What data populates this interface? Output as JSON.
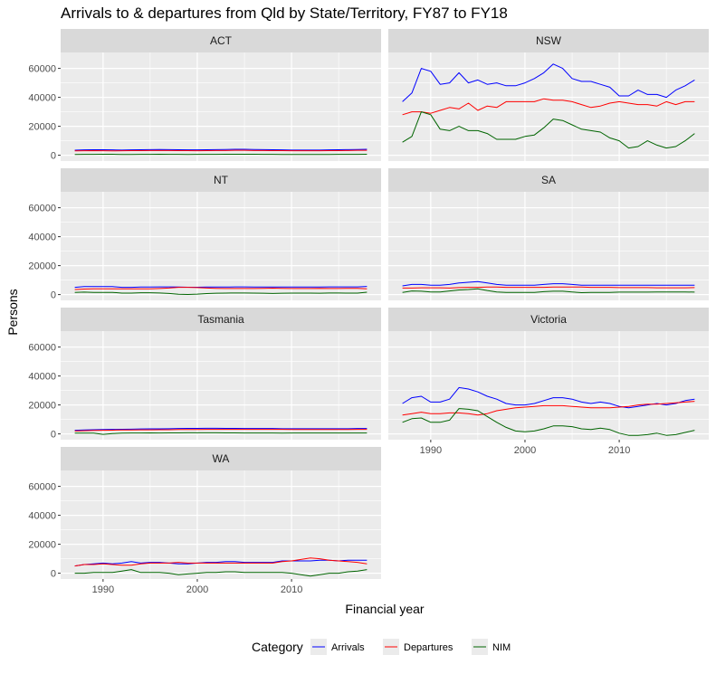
{
  "chart_data": {
    "type": "line",
    "title": "Arrivals to & departures from Qld by State/Territory, FY87 to FY18",
    "xlabel": "Financial year",
    "ylabel": "Persons",
    "xlim": [
      1985.5,
      2019.5
    ],
    "ylim": [
      -4000,
      71000
    ],
    "x_ticks": [
      1990,
      2000,
      2010
    ],
    "x_tick_labels": [
      "1990",
      "2000",
      "2010"
    ],
    "y_ticks": [
      0,
      20000,
      40000,
      60000
    ],
    "y_tick_labels": [
      "0",
      "20000",
      "40000",
      "60000"
    ],
    "legend": {
      "title": "Category",
      "position": "bottom",
      "entries": [
        {
          "label": "Arrivals",
          "color": "#0000ff"
        },
        {
          "label": "Departures",
          "color": "#ff0000"
        },
        {
          "label": "NIM",
          "color": "#006400"
        }
      ]
    },
    "x": [
      1987,
      1988,
      1989,
      1990,
      1991,
      1992,
      1993,
      1994,
      1995,
      1996,
      1997,
      1998,
      1999,
      2000,
      2001,
      2002,
      2003,
      2004,
      2005,
      2006,
      2007,
      2008,
      2009,
      2010,
      2011,
      2012,
      2013,
      2014,
      2015,
      2016,
      2017,
      2018
    ],
    "panels": [
      {
        "label": "ACT",
        "series": [
          {
            "name": "Arrivals",
            "values": [
              3500,
              3700,
              3800,
              3800,
              3700,
              3600,
              3700,
              3800,
              3900,
              4000,
              3900,
              3800,
              3700,
              3700,
              3800,
              3900,
              4000,
              4100,
              4100,
              4000,
              3900,
              3800,
              3700,
              3600,
              3600,
              3600,
              3600,
              3700,
              3800,
              3900,
              4000,
              4100
            ]
          },
          {
            "name": "Departures",
            "values": [
              3000,
              3100,
              3200,
              3100,
              3000,
              3100,
              3200,
              3200,
              3300,
              3300,
              3300,
              3200,
              3200,
              3100,
              3200,
              3300,
              3300,
              3400,
              3400,
              3300,
              3300,
              3200,
              3200,
              3100,
              3100,
              3100,
              3100,
              3200,
              3200,
              3300,
              3400,
              3400
            ]
          },
          {
            "name": "NIM",
            "values": [
              500,
              600,
              600,
              700,
              700,
              500,
              500,
              600,
              600,
              700,
              600,
              600,
              500,
              600,
              600,
              600,
              700,
              700,
              700,
              700,
              600,
              600,
              500,
              500,
              500,
              500,
              500,
              500,
              600,
              600,
              600,
              700
            ]
          }
        ]
      },
      {
        "label": "NSW",
        "series": [
          {
            "name": "Arrivals",
            "values": [
              37000,
              43000,
              60000,
              58000,
              49000,
              50000,
              57000,
              50000,
              52000,
              49000,
              50000,
              48000,
              48000,
              50000,
              53000,
              57000,
              63000,
              60000,
              53000,
              51000,
              51000,
              49000,
              47000,
              41000,
              41000,
              45000,
              42000,
              42000,
              40000,
              45000,
              48000,
              52000
            ]
          },
          {
            "name": "Departures",
            "values": [
              28000,
              30000,
              30000,
              29000,
              31000,
              33000,
              32000,
              36000,
              31000,
              34000,
              33000,
              37000,
              37000,
              37000,
              37000,
              39000,
              38000,
              38000,
              37000,
              35000,
              33000,
              34000,
              36000,
              37000,
              36000,
              35000,
              35000,
              34000,
              37000,
              35000,
              37000,
              37000
            ]
          },
          {
            "name": "NIM",
            "values": [
              9000,
              13000,
              30000,
              28000,
              18000,
              17000,
              20000,
              17000,
              17000,
              15000,
              11000,
              11000,
              11000,
              13000,
              14000,
              19000,
              25000,
              24000,
              21000,
              18000,
              17000,
              16000,
              12000,
              10000,
              5000,
              6000,
              10000,
              7000,
              5000,
              6000,
              10000,
              15000
            ]
          }
        ]
      },
      {
        "label": "NT",
        "series": [
          {
            "name": "Arrivals",
            "values": [
              5000,
              5500,
              5500,
              5500,
              5500,
              5000,
              5000,
              5200,
              5200,
              5300,
              5300,
              5200,
              5100,
              5100,
              5200,
              5200,
              5200,
              5300,
              5300,
              5200,
              5200,
              5200,
              5200,
              5200,
              5200,
              5200,
              5200,
              5300,
              5300,
              5300,
              5300,
              5600
            ]
          },
          {
            "name": "Departures",
            "values": [
              3500,
              3800,
              4000,
              4000,
              4000,
              4000,
              4000,
              4000,
              4000,
              4200,
              4500,
              5000,
              5000,
              4800,
              4500,
              4300,
              4200,
              4200,
              4200,
              4200,
              4300,
              4400,
              4300,
              4200,
              4200,
              4200,
              4300,
              4200,
              4200,
              4300,
              4300,
              4000
            ]
          },
          {
            "name": "NIM",
            "values": [
              1500,
              1700,
              1500,
              1500,
              1500,
              1000,
              1000,
              1200,
              1200,
              1100,
              800,
              200,
              100,
              300,
              700,
              900,
              1000,
              1100,
              1100,
              1000,
              900,
              800,
              900,
              1000,
              1000,
              1000,
              900,
              1100,
              1100,
              1000,
              1000,
              1600
            ]
          }
        ]
      },
      {
        "label": "SA",
        "series": [
          {
            "name": "Arrivals",
            "values": [
              6000,
              7000,
              7000,
              6500,
              6500,
              7000,
              8000,
              8500,
              9000,
              8000,
              7000,
              6500,
              6500,
              6500,
              6500,
              7000,
              7500,
              7500,
              7000,
              6500,
              6500,
              6500,
              6500,
              6500,
              6500,
              6500,
              6500,
              6500,
              6500,
              6500,
              6500,
              6500
            ]
          },
          {
            "name": "Departures",
            "values": [
              4500,
              4500,
              4700,
              4700,
              4700,
              4500,
              4800,
              5000,
              5000,
              5200,
              5200,
              5000,
              5000,
              5000,
              5000,
              5000,
              5200,
              5200,
              5200,
              5200,
              5000,
              5000,
              5000,
              4800,
              4800,
              4800,
              4800,
              4700,
              4700,
              4700,
              4700,
              4800
            ]
          },
          {
            "name": "NIM",
            "values": [
              1500,
              2500,
              2300,
              1800,
              1800,
              2500,
              3200,
              3500,
              4000,
              2800,
              1800,
              1500,
              1500,
              1500,
              1500,
              2000,
              2300,
              2300,
              1800,
              1300,
              1500,
              1500,
              1500,
              1700,
              1700,
              1700,
              1700,
              1800,
              1800,
              1800,
              1800,
              1700
            ]
          }
        ]
      },
      {
        "label": "Tasmania",
        "series": [
          {
            "name": "Arrivals",
            "values": [
              2500,
              2700,
              2900,
              3000,
              3100,
              3200,
              3300,
              3400,
              3500,
              3500,
              3600,
              3700,
              3800,
              3800,
              3900,
              3900,
              3800,
              3800,
              3700,
              3700,
              3700,
              3700,
              3600,
              3600,
              3600,
              3600,
              3600,
              3600,
              3600,
              3600,
              3700,
              3700
            ]
          },
          {
            "name": "Departures",
            "values": [
              2000,
              2200,
              2400,
              2500,
              2600,
              2700,
              2700,
              2800,
              2800,
              2900,
              2900,
              3000,
              3000,
              3000,
              3100,
              3100,
              3100,
              3100,
              3100,
              3100,
              3100,
              3100,
              3100,
              3000,
              3000,
              3000,
              3000,
              3000,
              3000,
              3000,
              3100,
              3100
            ]
          },
          {
            "name": "NIM",
            "values": [
              500,
              500,
              500,
              -300,
              200,
              500,
              600,
              600,
              700,
              600,
              700,
              700,
              800,
              800,
              800,
              800,
              700,
              700,
              600,
              600,
              600,
              600,
              500,
              600,
              600,
              600,
              600,
              600,
              600,
              600,
              600,
              600
            ]
          }
        ]
      },
      {
        "label": "Victoria",
        "series": [
          {
            "name": "Arrivals",
            "values": [
              21000,
              25000,
              26000,
              22000,
              22000,
              24000,
              32000,
              31000,
              29000,
              26000,
              24000,
              21000,
              20000,
              20000,
              21000,
              23000,
              25000,
              25000,
              24000,
              22000,
              21000,
              22000,
              21000,
              19000,
              18000,
              19000,
              20000,
              21000,
              20000,
              21000,
              23000,
              24000
            ]
          },
          {
            "name": "Departures",
            "values": [
              13000,
              14000,
              15000,
              14000,
              14000,
              14500,
              14500,
              14000,
              13000,
              14000,
              16000,
              17000,
              18000,
              18500,
              19000,
              19500,
              19500,
              19500,
              19000,
              18500,
              18000,
              18000,
              18000,
              18500,
              19000,
              20000,
              20500,
              20500,
              21000,
              21500,
              22000,
              22500
            ]
          },
          {
            "name": "NIM",
            "values": [
              8000,
              10500,
              11000,
              8000,
              8000,
              9500,
              17500,
              17000,
              16000,
              12000,
              8000,
              4500,
              2000,
              1500,
              2000,
              3500,
              5500,
              5500,
              5000,
              3500,
              3000,
              4000,
              3000,
              500,
              -1000,
              -1000,
              -500,
              500,
              -1000,
              -500,
              1000,
              2500
            ]
          }
        ]
      },
      {
        "label": "WA",
        "series": [
          {
            "name": "Arrivals",
            "values": [
              5000,
              6000,
              6500,
              7000,
              6500,
              7000,
              8000,
              7000,
              7500,
              7500,
              7000,
              6500,
              6500,
              7000,
              7500,
              7500,
              8000,
              8000,
              7500,
              7500,
              7500,
              7500,
              8500,
              8500,
              8500,
              8500,
              9000,
              9000,
              8500,
              9000,
              9000,
              9000
            ]
          },
          {
            "name": "Departures",
            "values": [
              5000,
              6000,
              6000,
              6500,
              6000,
              5500,
              5500,
              6500,
              7000,
              7000,
              7000,
              7500,
              7000,
              7000,
              7000,
              7000,
              7000,
              7000,
              7000,
              7000,
              7000,
              7000,
              8000,
              8500,
              9500,
              10500,
              10000,
              9000,
              8500,
              8000,
              7500,
              6500
            ]
          },
          {
            "name": "NIM",
            "values": [
              0,
              0,
              500,
              500,
              500,
              1500,
              2500,
              500,
              500,
              500,
              0,
              -1000,
              -500,
              0,
              500,
              500,
              1000,
              1000,
              500,
              500,
              500,
              500,
              500,
              0,
              -1000,
              -2000,
              -1000,
              0,
              0,
              1000,
              1500,
              2500
            ]
          }
        ]
      }
    ]
  }
}
